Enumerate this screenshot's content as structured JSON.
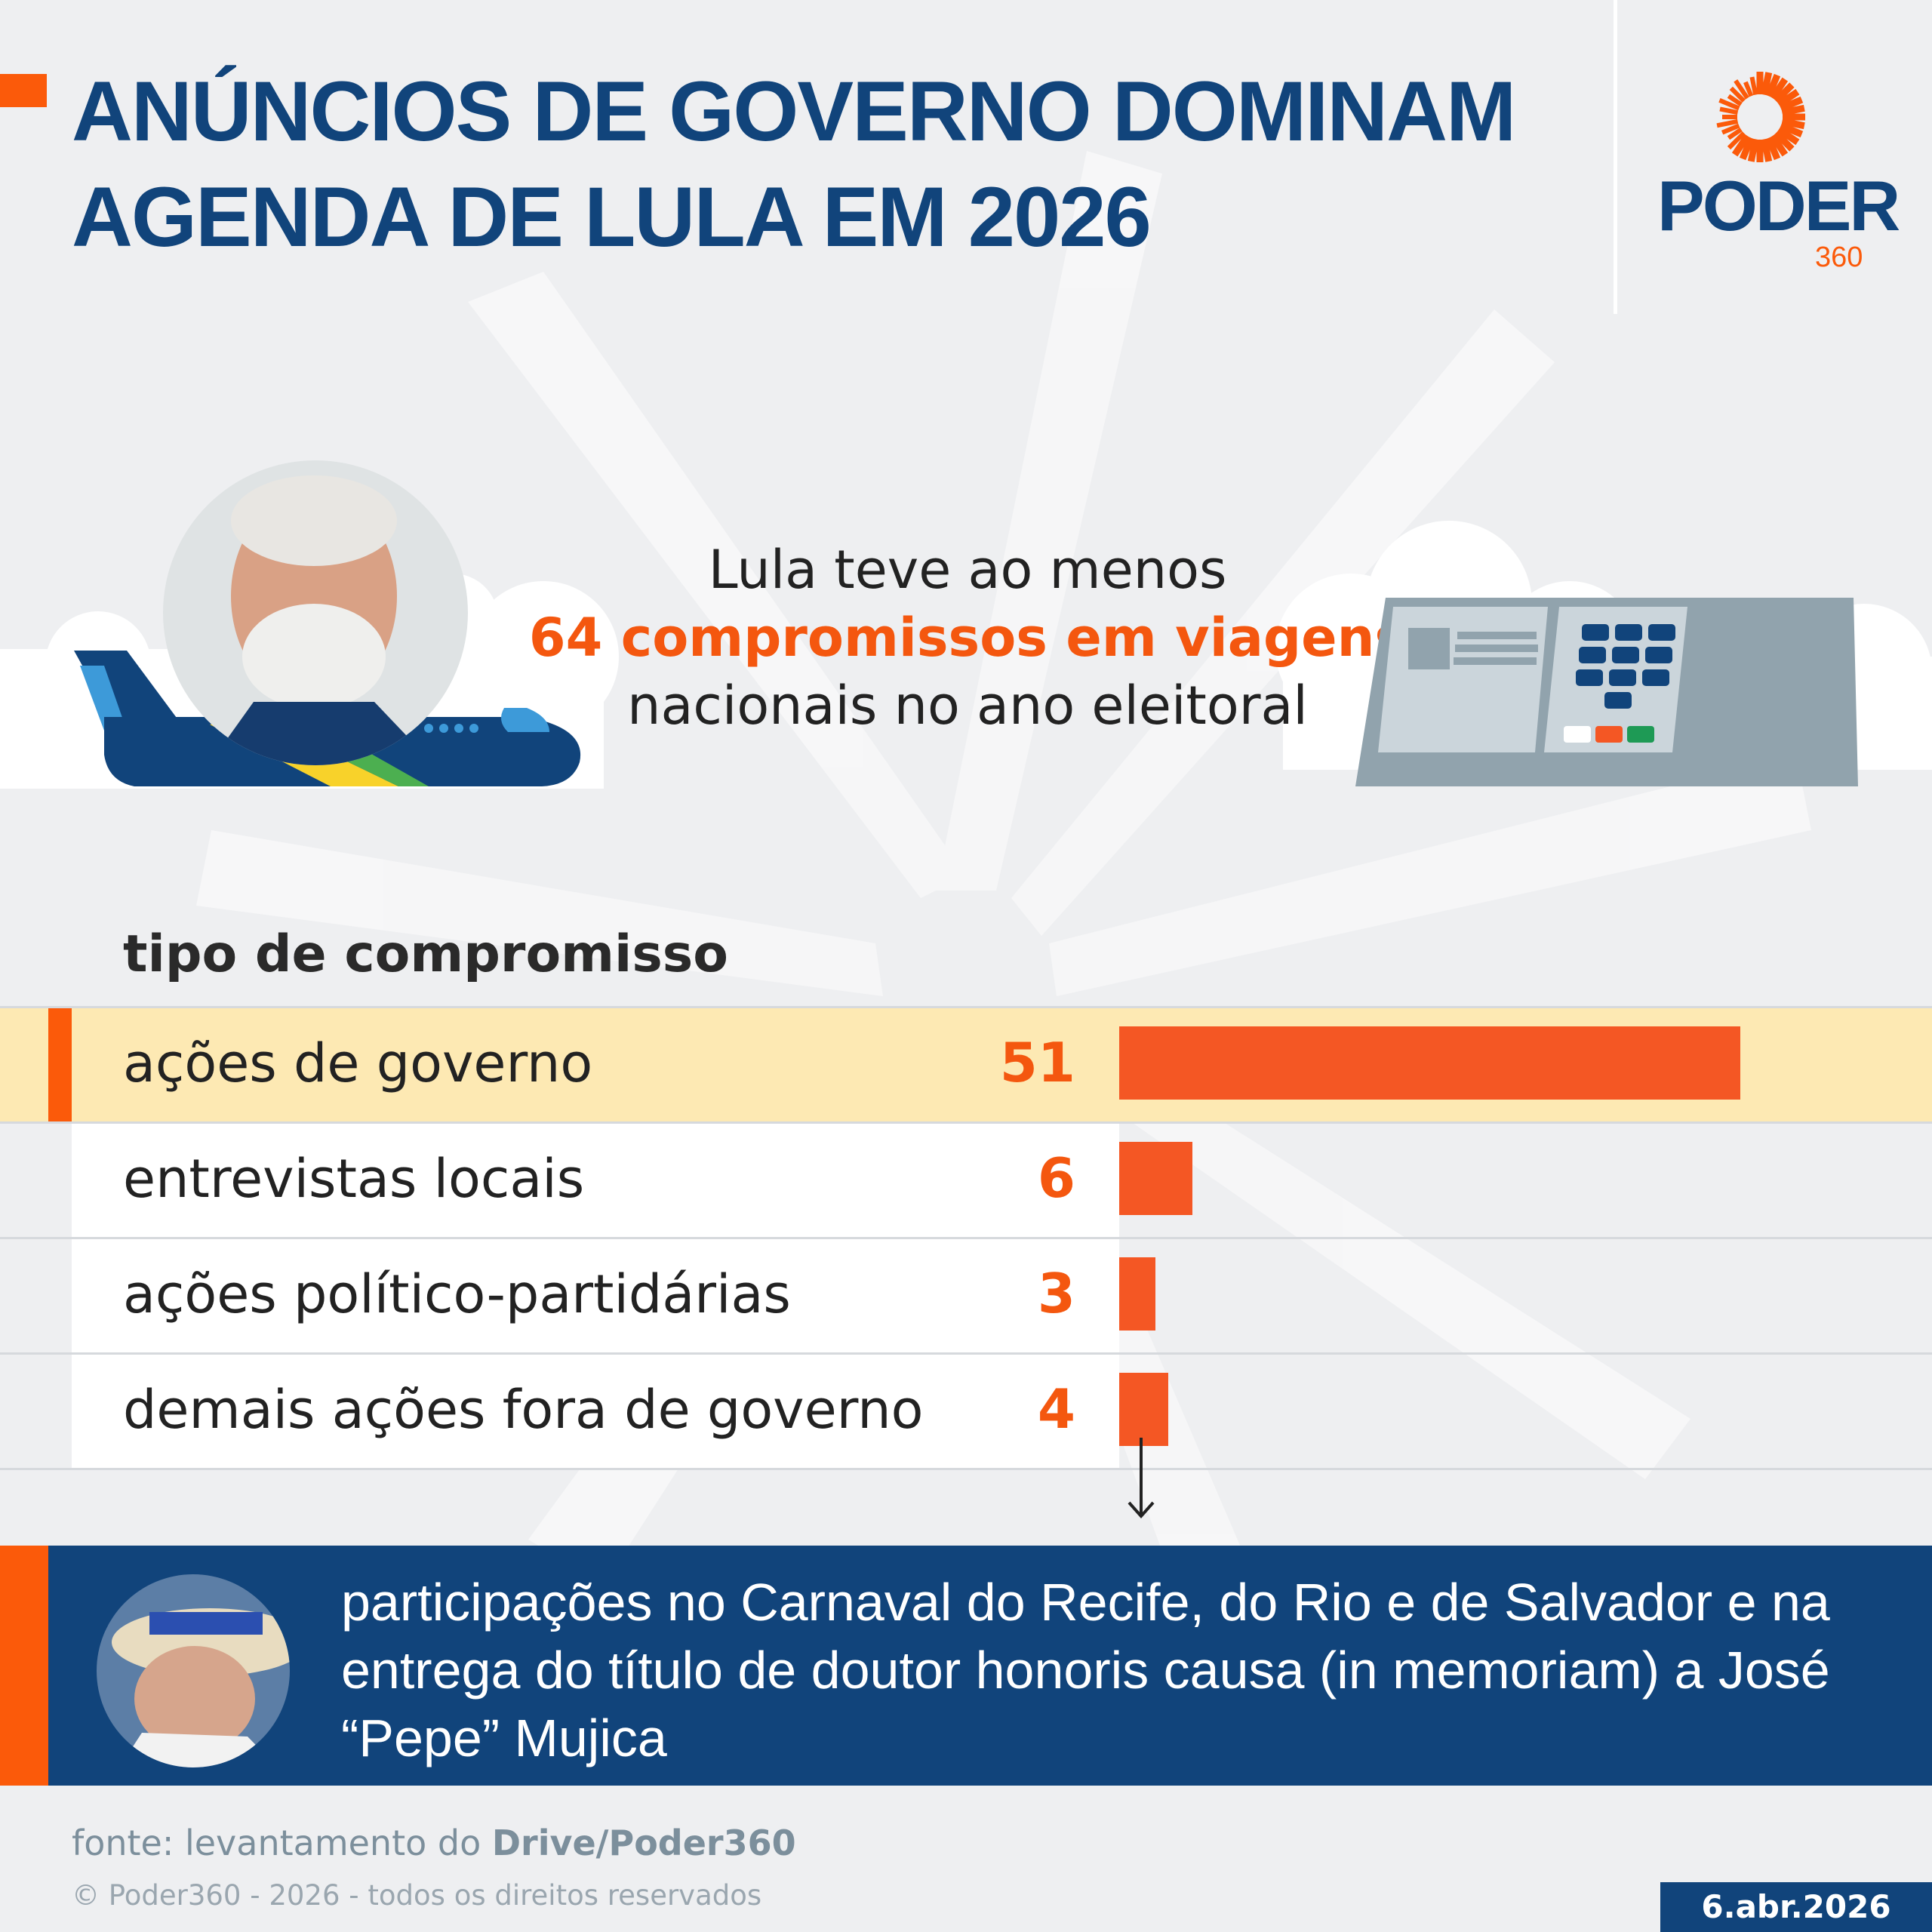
{
  "header": {
    "title_line1": "ANÚNCIOS DE GOVERNO DOMINAM",
    "title_line2": "AGENDA DE LULA EM 2026"
  },
  "logo": {
    "name": "PODER",
    "suffix": "360"
  },
  "intro": {
    "line1": "Lula teve ao menos",
    "highlight": "64 compromissos em viagens",
    "line3": "nacionais no ano eleitoral"
  },
  "colors": {
    "brand_blue": "#11447b",
    "accent_orange": "#fb5a0a",
    "highlight_row": "#fde9b3",
    "bar": "#f45724"
  },
  "chart_data": {
    "type": "bar",
    "orientation": "horizontal",
    "title": "tipo de compromisso",
    "categories": [
      "ações de governo",
      "entrevistas locais",
      "ações político-partidárias",
      "demais ações fora de governo"
    ],
    "values": [
      51,
      6,
      3,
      4
    ],
    "highlighted": "ações de governo",
    "xlim": [
      0,
      51
    ]
  },
  "banner": {
    "text": "participações no Carnaval do Recife, do Rio e de Salvador e na entrega do título de doutor honoris causa (in memoriam) a José “Pepe” Mujica"
  },
  "footer": {
    "source_prefix": "fonte: levantamento do ",
    "source_bold": "Drive/Poder360",
    "copyright": "© Poder360 - 2026 - todos os direitos reservados",
    "date": "6.abr.2026"
  }
}
